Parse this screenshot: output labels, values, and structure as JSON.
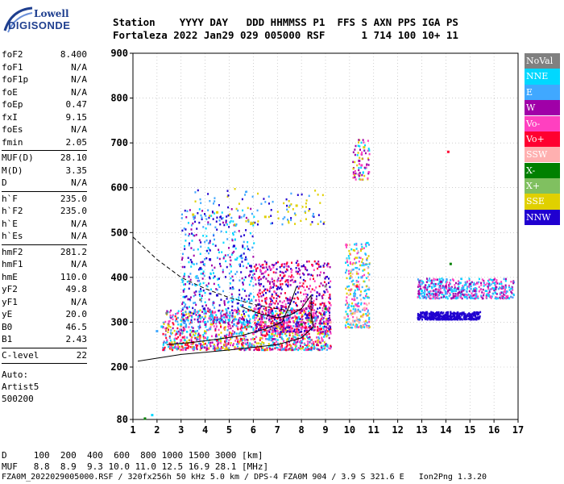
{
  "logo": {
    "line1": "Lowell",
    "line2": "DIGISONDE"
  },
  "header": {
    "labels": "Station    YYYY DAY   DDD HHMMSS P1  FFS S AXN PPS IGA PS",
    "values": "Fortaleza 2022 Jan29 029 005000 RSF      1 714 100 10+ 11"
  },
  "params": {
    "group1": [
      {
        "name": "foF2",
        "value": "8.400"
      },
      {
        "name": "foF1",
        "value": "N/A"
      },
      {
        "name": "foF1p",
        "value": "N/A"
      },
      {
        "name": "foE",
        "value": "N/A"
      },
      {
        "name": "foEp",
        "value": "0.47"
      },
      {
        "name": "fxI",
        "value": "9.15"
      },
      {
        "name": "foEs",
        "value": "N/A"
      },
      {
        "name": "fmin",
        "value": "2.05"
      }
    ],
    "group2": [
      {
        "name": "MUF(D)",
        "value": "28.10"
      },
      {
        "name": "M(D)",
        "value": "3.35"
      },
      {
        "name": "D",
        "value": "N/A"
      }
    ],
    "group3": [
      {
        "name": "h`F",
        "value": "235.0"
      },
      {
        "name": "h`F2",
        "value": "235.0"
      },
      {
        "name": "h`E",
        "value": "N/A"
      },
      {
        "name": "h`Es",
        "value": "N/A"
      }
    ],
    "group4": [
      {
        "name": "hmF2",
        "value": "281.2"
      },
      {
        "name": "hmF1",
        "value": "N/A"
      },
      {
        "name": "hmE",
        "value": "110.0"
      },
      {
        "name": "yF2",
        "value": "49.8"
      },
      {
        "name": "yF1",
        "value": "N/A"
      },
      {
        "name": "yE",
        "value": "20.0"
      },
      {
        "name": "B0",
        "value": "46.5"
      },
      {
        "name": "B1",
        "value": "2.43"
      }
    ],
    "group5": [
      {
        "name": "C-level",
        "value": "22"
      }
    ]
  },
  "auto": {
    "line1": "Auto:",
    "line2": "Artist5",
    "line3": "500200"
  },
  "dmuf": {
    "d_row": "D     100  200  400  600  800 1000 1500 3000 [km]",
    "muf_row": "MUF   8.8  8.9  9.3 10.0 11.0 12.5 16.9 28.1 [MHz]"
  },
  "footer": "FZA0M_2022029005000.RSF / 320fx256h 50 kHz 5.0 km / DPS-4 FZA0M 904 / 3.9 S 321.6 E   Ion2Png 1.3.20",
  "legend": [
    {
      "label": "NoVal",
      "color": "#808080"
    },
    {
      "label": "NNE",
      "color": "#00d8ff"
    },
    {
      "label": "E",
      "color": "#40a8ff"
    },
    {
      "label": "W",
      "color": "#a000a8"
    },
    {
      "label": "Vo-",
      "color": "#ff40c0"
    },
    {
      "label": "Vo+",
      "color": "#ff0030"
    },
    {
      "label": "SSW",
      "color": "#ffb0b0"
    },
    {
      "label": "X-",
      "color": "#008000"
    },
    {
      "label": "X+",
      "color": "#80c060"
    },
    {
      "label": "SSE",
      "color": "#e0d000"
    },
    {
      "label": "NNW",
      "color": "#2000d0"
    }
  ],
  "chart_data": {
    "type": "scatter",
    "title": "",
    "xlabel": "",
    "ylabel": "",
    "xlim": [
      1,
      17
    ],
    "ylim": [
      80,
      900
    ],
    "x_ticks": [
      1,
      2,
      3,
      4,
      5,
      6,
      7,
      8,
      9,
      10,
      11,
      12,
      13,
      14,
      15,
      16,
      17
    ],
    "y_ticks": [
      80,
      200,
      300,
      400,
      500,
      600,
      700,
      800,
      900
    ],
    "grid": true,
    "legend_position": "right",
    "series": [
      {
        "name": "NNW",
        "points": [
          [
            13.0,
            320
          ],
          [
            13.5,
            318
          ],
          [
            14.0,
            316
          ],
          [
            14.5,
            314
          ],
          [
            15.0,
            315
          ],
          [
            13.2,
            322
          ],
          [
            14.8,
            312
          ],
          [
            3.8,
            420
          ],
          [
            4.2,
            440
          ],
          [
            5.2,
            470
          ],
          [
            4.5,
            360
          ]
        ]
      },
      {
        "name": "W",
        "points": [
          [
            14.0,
            380
          ],
          [
            14.5,
            375
          ],
          [
            15.0,
            385
          ],
          [
            13.8,
            390
          ],
          [
            15.2,
            370
          ],
          [
            7.5,
            350
          ],
          [
            8.2,
            330
          ],
          [
            4.8,
            300
          ],
          [
            3.5,
            280
          ],
          [
            10.4,
            660
          ]
        ]
      },
      {
        "name": "Vo-",
        "points": [
          [
            3.0,
            260
          ],
          [
            4.0,
            265
          ],
          [
            5.0,
            270
          ],
          [
            6.0,
            275
          ],
          [
            7.0,
            280
          ],
          [
            8.0,
            300
          ],
          [
            8.5,
            320
          ],
          [
            10.2,
            350
          ],
          [
            10.5,
            650
          ],
          [
            14.5,
            360
          ]
        ]
      },
      {
        "name": "Vo+",
        "points": [
          [
            2.6,
            250
          ],
          [
            3.5,
            255
          ],
          [
            4.5,
            260
          ],
          [
            5.5,
            262
          ],
          [
            6.5,
            270
          ],
          [
            7.2,
            290
          ],
          [
            7.8,
            310
          ],
          [
            8.8,
            340
          ],
          [
            10.3,
            380
          ],
          [
            14.1,
            680
          ]
        ]
      },
      {
        "name": "NNE",
        "points": [
          [
            2.2,
            290
          ],
          [
            3.0,
            295
          ],
          [
            4.0,
            300
          ],
          [
            5.0,
            305
          ],
          [
            6.0,
            310
          ],
          [
            6.8,
            320
          ],
          [
            7.6,
            330
          ],
          [
            13.0,
            370
          ],
          [
            16.0,
            375
          ],
          [
            1.8,
            90
          ]
        ]
      },
      {
        "name": "E",
        "points": [
          [
            2.0,
            280
          ],
          [
            3.2,
            290
          ],
          [
            4.2,
            285
          ],
          [
            5.2,
            295
          ],
          [
            6.2,
            300
          ],
          [
            7.4,
            305
          ],
          [
            8.6,
            310
          ],
          [
            10.5,
            400
          ],
          [
            13.5,
            385
          ]
        ]
      },
      {
        "name": "SSE",
        "points": [
          [
            3.5,
            540
          ],
          [
            4.5,
            545
          ],
          [
            6.5,
            535
          ],
          [
            7.8,
            560
          ],
          [
            8.4,
            300
          ],
          [
            7.0,
            290
          ],
          [
            10.6,
            690
          ]
        ]
      },
      {
        "name": "SSW",
        "points": [
          [
            10.2,
            320
          ],
          [
            10.4,
            300
          ],
          [
            10.6,
            330
          ],
          [
            9.8,
            310
          ],
          [
            9.2,
            300
          ]
        ]
      },
      {
        "name": "X-",
        "points": [
          [
            9.0,
            330
          ],
          [
            8.0,
            295
          ],
          [
            14.2,
            430
          ],
          [
            1.5,
            82
          ]
        ]
      },
      {
        "name": "X+",
        "points": [
          [
            6.5,
            300
          ],
          [
            8.3,
            305
          ],
          [
            5.8,
            290
          ]
        ]
      },
      {
        "name": "NoVal",
        "points": [
          [
            2.4,
            320
          ],
          [
            3.8,
            350
          ],
          [
            9.0,
            380
          ]
        ]
      }
    ]
  }
}
